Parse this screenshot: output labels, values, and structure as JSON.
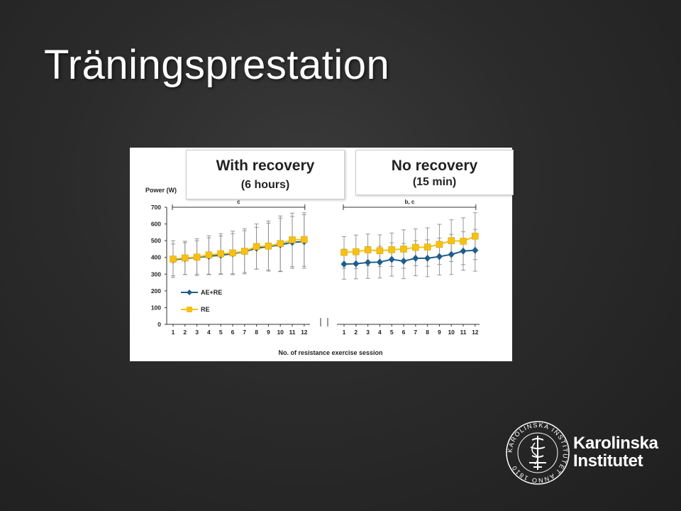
{
  "slide": {
    "title": "Träningsprestation"
  },
  "panels": {
    "left": {
      "main": "With recovery",
      "sub": "(6 hours)",
      "significance": "c"
    },
    "right": {
      "main": "No recovery",
      "sub": "(15 min)",
      "significance": "b, c"
    }
  },
  "logo": {
    "line1": "Karolinska",
    "line2": "Institutet",
    "seal_text": "KAROLINSKA INSTITUTET ANNO 1810"
  },
  "colors": {
    "ae_re": "#1f5d8c",
    "re": "#f5c116",
    "error_bar": "#8c8c8c"
  },
  "chart_data": {
    "type": "line",
    "ylabel": "Power (W)",
    "xlabel": "No. of resistance exercise session",
    "ylim": [
      0,
      700
    ],
    "yticks": [
      0,
      100,
      200,
      300,
      400,
      500,
      600,
      700
    ],
    "grid": false,
    "legend_position": "lower-left",
    "axis_break": true,
    "panels": [
      {
        "name": "With recovery (6 hours)",
        "categories": [
          "1",
          "2",
          "3",
          "4",
          "5",
          "6",
          "7",
          "8",
          "9",
          "10",
          "11",
          "12"
        ],
        "series": [
          {
            "name": "AE+RE",
            "marker": "diamond",
            "values": [
              385,
              393,
              400,
              407,
              413,
              422,
              435,
              455,
              465,
              475,
              490,
              495
            ],
            "error": [
              95,
              95,
              100,
              110,
              115,
              120,
              125,
              125,
              140,
              160,
              155,
              160
            ]
          },
          {
            "name": "RE",
            "marker": "square",
            "values": [
              390,
              397,
              402,
              415,
              422,
              427,
              437,
              465,
              468,
              483,
              505,
              507
            ],
            "error": [
              110,
              100,
              110,
              115,
              120,
              130,
              135,
              135,
              150,
              165,
              160,
              160
            ]
          }
        ]
      },
      {
        "name": "No recovery (15 min)",
        "categories": [
          "1",
          "2",
          "3",
          "4",
          "5",
          "6",
          "7",
          "8",
          "9",
          "10",
          "11",
          "12"
        ],
        "series": [
          {
            "name": "AE+RE",
            "marker": "diamond",
            "values": [
              360,
              362,
              370,
              372,
              388,
              378,
              395,
              395,
              405,
              418,
              438,
              443
            ],
            "error": [
              90,
              90,
              95,
              95,
              100,
              105,
              105,
              110,
              110,
              120,
              115,
              125
            ]
          },
          {
            "name": "RE",
            "marker": "square",
            "values": [
              430,
              434,
              445,
              440,
              446,
              450,
              460,
              462,
              478,
              500,
              497,
              527
            ],
            "error": [
              95,
              100,
              95,
              95,
              100,
              115,
              110,
              115,
              120,
              125,
              140,
              140
            ]
          }
        ]
      }
    ]
  }
}
